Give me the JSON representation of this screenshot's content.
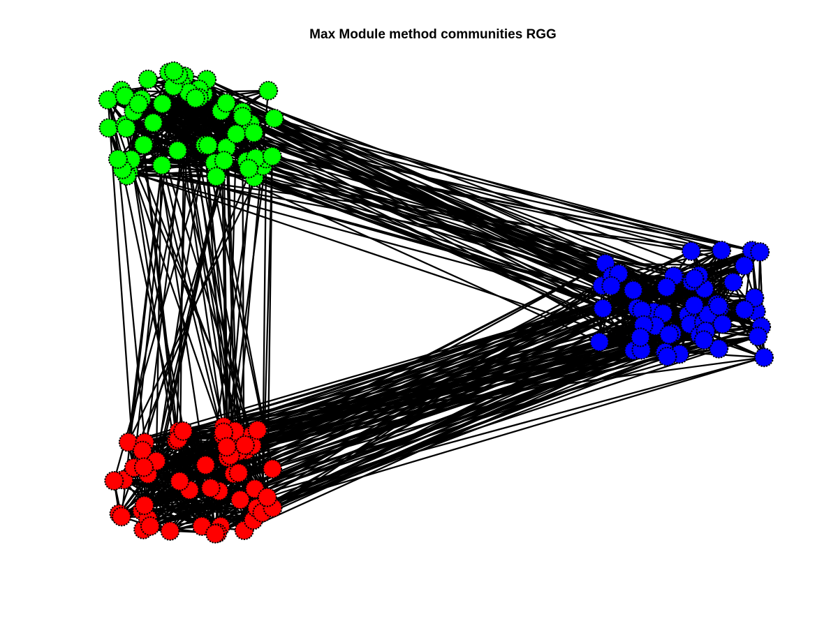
{
  "figure": {
    "title": "Max Module method communities RGG"
  },
  "graph": {
    "communities": [
      {
        "color": "#00ff00",
        "node_count": 55
      },
      {
        "color": "#0000ff",
        "node_count": 55
      },
      {
        "color": "#ff0000",
        "node_count": 55
      }
    ],
    "edge_color": "#000000",
    "node_outline_color": "#000000"
  }
}
